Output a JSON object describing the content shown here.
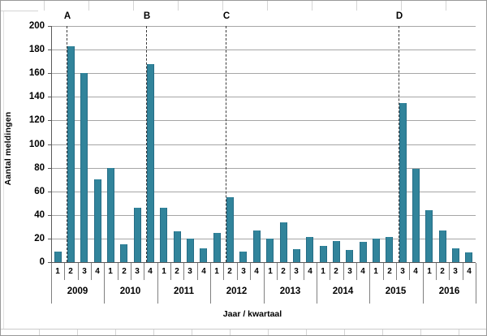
{
  "chart_data": {
    "type": "bar",
    "title": "",
    "xlabel": "Jaar / kwartaal",
    "ylabel": "Aantal meldingen",
    "ylim": [
      0,
      200
    ],
    "yticks": [
      0,
      20,
      40,
      60,
      80,
      100,
      120,
      140,
      160,
      180,
      200
    ],
    "grid": true,
    "legend": "none",
    "quarter_labels": [
      "1",
      "2",
      "3",
      "4"
    ],
    "series_by_year": [
      {
        "year": "2009",
        "values": [
          9,
          183,
          160,
          70
        ]
      },
      {
        "year": "2010",
        "values": [
          80,
          15,
          46,
          168
        ]
      },
      {
        "year": "2011",
        "values": [
          46,
          26,
          20,
          12
        ]
      },
      {
        "year": "2012",
        "values": [
          25,
          55,
          9,
          27
        ]
      },
      {
        "year": "2013",
        "values": [
          20,
          34,
          11,
          21
        ]
      },
      {
        "year": "2014",
        "values": [
          14,
          18,
          10,
          17
        ]
      },
      {
        "year": "2015",
        "values": [
          20,
          21,
          135,
          79
        ]
      },
      {
        "year": "2016",
        "values": [
          44,
          27,
          12,
          8
        ]
      }
    ],
    "markers": [
      {
        "label": "A",
        "year": "2009",
        "quarter": "2",
        "slot_index": 1
      },
      {
        "label": "B",
        "year": "2010",
        "quarter": "4",
        "slot_index": 7
      },
      {
        "label": "C",
        "year": "2012",
        "quarter": "2",
        "slot_index": 13
      },
      {
        "label": "D",
        "year": "2015",
        "quarter": "3",
        "slot_index": 26
      }
    ],
    "colors": {
      "bar_fill": "#31849b",
      "bar_edge": "#256d86",
      "gridline": "#a6a6a6",
      "axis": "#595959",
      "marker_line": "#3a3a3a",
      "text": "#000000"
    }
  }
}
